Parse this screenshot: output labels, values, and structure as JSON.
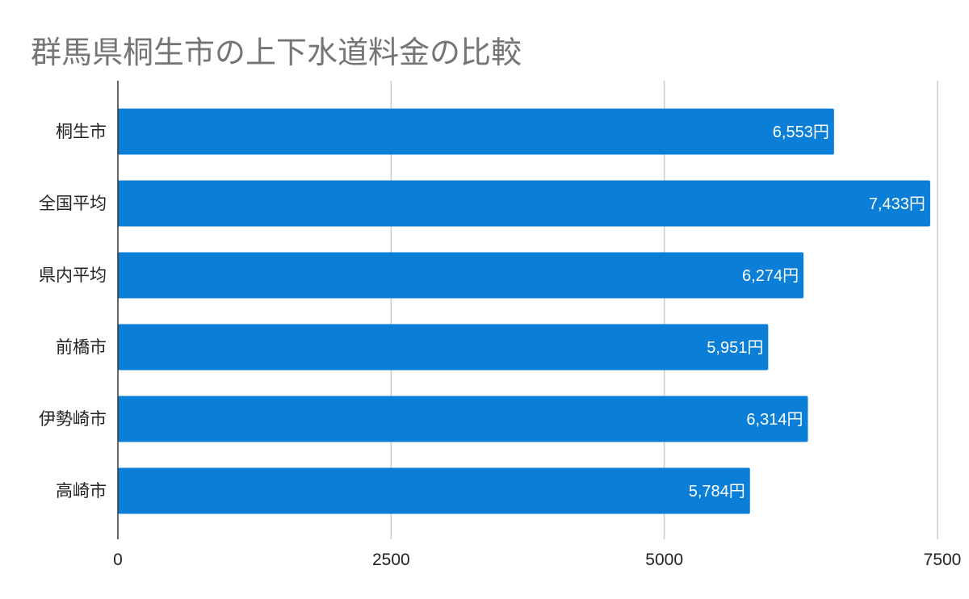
{
  "chart_data": {
    "type": "bar",
    "orientation": "horizontal",
    "title": "群馬県桐生市の上下水道料金の比較",
    "categories": [
      "桐生市",
      "全国平均",
      "県内平均",
      "前橋市",
      "伊勢崎市",
      "高崎市"
    ],
    "values": [
      6553,
      7433,
      6274,
      5951,
      6314,
      5784
    ],
    "data_labels": [
      "6,553円",
      "7,433円",
      "6,274円",
      "5,951円",
      "6,314円",
      "5,784円"
    ],
    "xlim": [
      0,
      7500
    ],
    "x_ticks": [
      0,
      2500,
      5000,
      7500
    ],
    "x_tick_labels": [
      "0",
      "2500",
      "5000",
      "7500"
    ],
    "xlabel": "",
    "ylabel": "",
    "grid": true,
    "legend": "none",
    "bar_color": "#0B7ED8"
  }
}
